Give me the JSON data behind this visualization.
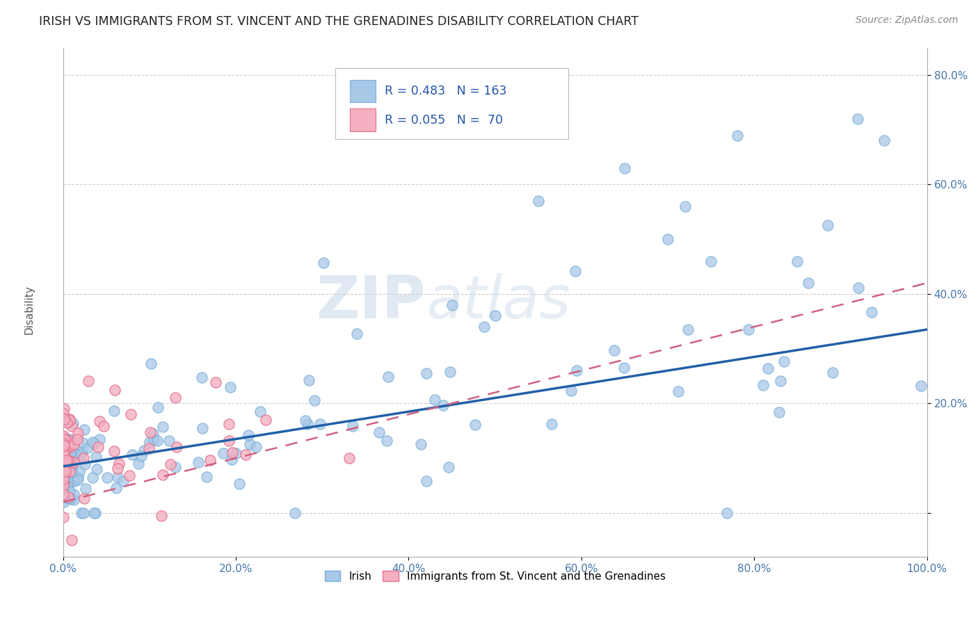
{
  "title": "IRISH VS IMMIGRANTS FROM ST. VINCENT AND THE GRENADINES DISABILITY CORRELATION CHART",
  "source_text": "Source: ZipAtlas.com",
  "ylabel": "Disability",
  "watermark_zip": "ZIP",
  "watermark_atlas": "atlas",
  "x_min": 0.0,
  "x_max": 1.0,
  "y_min": 0.0,
  "y_max": 0.85,
  "x_ticks": [
    0.0,
    0.2,
    0.4,
    0.6,
    0.8,
    1.0
  ],
  "x_tick_labels": [
    "0.0%",
    "20.0%",
    "40.0%",
    "60.0%",
    "80.0%",
    "100.0%"
  ],
  "y_ticks": [
    0.0,
    0.2,
    0.4,
    0.6,
    0.8
  ],
  "y_tick_labels": [
    "",
    "20.0%",
    "40.0%",
    "60.0%",
    "80.0%"
  ],
  "irish_color": "#a8c8e8",
  "irish_edge_color": "#7ab0d8",
  "svg_color": "#f4b0c0",
  "svg_edge_color": "#e07090",
  "irish_line_color": "#2060a8",
  "svg_line_color": "#d06080",
  "R_irish": 0.483,
  "N_irish": 163,
  "R_svg": 0.055,
  "N_svg": 70,
  "legend_label_irish": "Irish",
  "legend_label_svg": "Immigrants from St. Vincent and the Grenadines",
  "legend_box_color_irish": "#a8c8e8",
  "legend_box_color_svg": "#f4b0c0",
  "irish_line_y0": 0.085,
  "irish_line_y1": 0.335,
  "svg_line_y0": 0.02,
  "svg_line_y1": 0.42
}
